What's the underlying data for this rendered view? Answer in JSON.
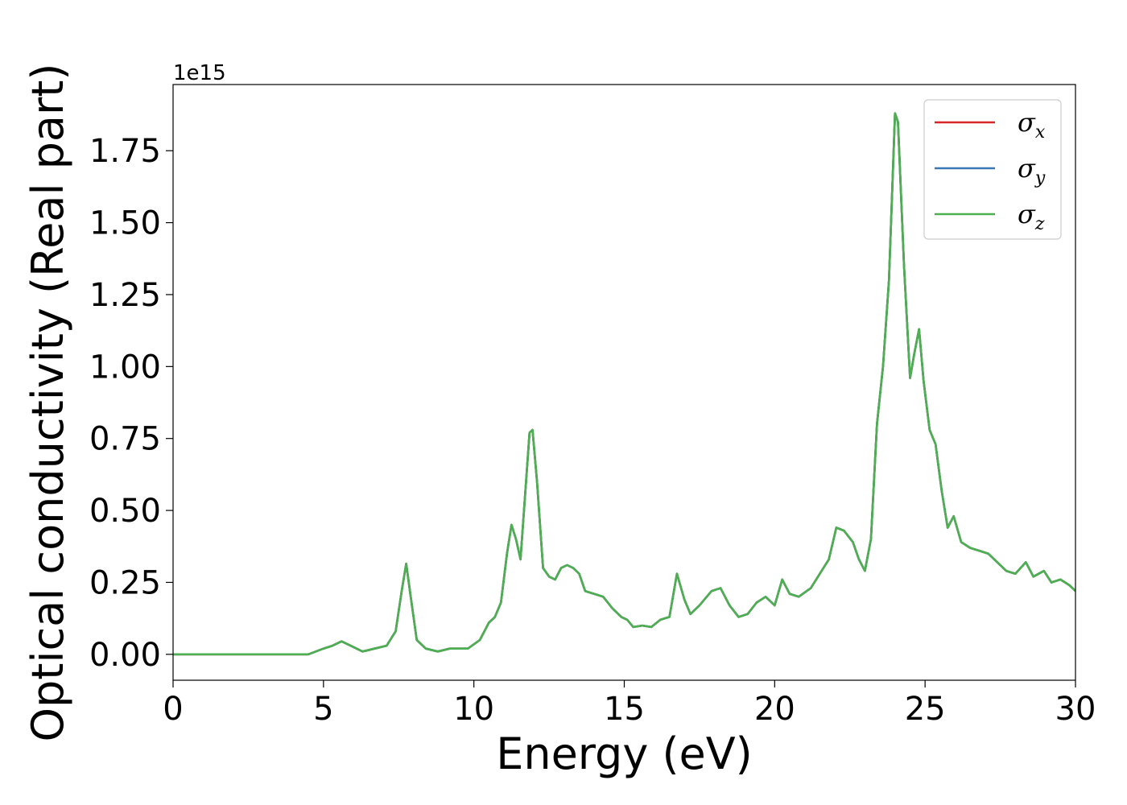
{
  "chart_data": {
    "type": "line",
    "title": "",
    "xlabel": "Energy (eV)",
    "ylabel": "Optical conductivity (Real part)",
    "offset_text": "1e15",
    "xlim": [
      0,
      30
    ],
    "ylim": [
      -0.09,
      1.98
    ],
    "xticks": [
      0,
      5,
      10,
      15,
      20,
      25,
      30
    ],
    "xtick_labels": [
      "0",
      "5",
      "10",
      "15",
      "20",
      "25",
      "30"
    ],
    "yticks": [
      0.0,
      0.25,
      0.5,
      0.75,
      1.0,
      1.25,
      1.5,
      1.75
    ],
    "ytick_labels": [
      "0.00",
      "0.25",
      "0.50",
      "0.75",
      "1.00",
      "1.25",
      "1.50",
      "1.75"
    ],
    "grid": false,
    "legend_position": "top-right",
    "series_style": [
      {
        "symbol": "σ",
        "subscript": "x",
        "color": "#d62728"
      },
      {
        "symbol": "σ",
        "subscript": "y",
        "color": "#3a77b5"
      },
      {
        "symbol": "σ",
        "subscript": "z",
        "color": "#4caf50"
      }
    ],
    "x": [
      0,
      1,
      2,
      3,
      4,
      4.5,
      5,
      5.3,
      5.6,
      5.9,
      6.3,
      6.7,
      7.1,
      7.4,
      7.6,
      7.75,
      7.9,
      8.1,
      8.4,
      8.8,
      9.2,
      9.5,
      9.8,
      10.2,
      10.5,
      10.7,
      10.9,
      11.1,
      11.25,
      11.4,
      11.55,
      11.7,
      11.85,
      11.95,
      12.1,
      12.3,
      12.5,
      12.7,
      12.9,
      13.1,
      13.3,
      13.5,
      13.7,
      14.0,
      14.3,
      14.6,
      14.9,
      15.1,
      15.3,
      15.6,
      15.9,
      16.2,
      16.5,
      16.75,
      17.0,
      17.2,
      17.5,
      17.9,
      18.2,
      18.5,
      18.8,
      19.1,
      19.4,
      19.7,
      20.0,
      20.25,
      20.5,
      20.8,
      21.2,
      21.5,
      21.8,
      22.05,
      22.3,
      22.6,
      22.8,
      23.0,
      23.2,
      23.4,
      23.6,
      23.8,
      24.0,
      24.1,
      24.3,
      24.5,
      24.65,
      24.8,
      24.95,
      25.15,
      25.35,
      25.55,
      25.75,
      25.95,
      26.2,
      26.5,
      26.8,
      27.1,
      27.4,
      27.7,
      28.0,
      28.35,
      28.6,
      28.95,
      29.2,
      29.5,
      29.8,
      30.0
    ],
    "series": [
      {
        "values": [
          0.0,
          0.0,
          0.0,
          0.0,
          0.0,
          0.0,
          0.02,
          0.03,
          0.045,
          0.03,
          0.01,
          0.02,
          0.03,
          0.08,
          0.22,
          0.315,
          0.2,
          0.05,
          0.02,
          0.01,
          0.02,
          0.02,
          0.02,
          0.05,
          0.11,
          0.13,
          0.18,
          0.35,
          0.45,
          0.4,
          0.33,
          0.55,
          0.77,
          0.78,
          0.6,
          0.3,
          0.27,
          0.26,
          0.3,
          0.31,
          0.3,
          0.28,
          0.22,
          0.21,
          0.2,
          0.16,
          0.13,
          0.12,
          0.095,
          0.1,
          0.095,
          0.12,
          0.13,
          0.28,
          0.19,
          0.14,
          0.17,
          0.22,
          0.23,
          0.17,
          0.13,
          0.14,
          0.18,
          0.2,
          0.17,
          0.26,
          0.21,
          0.2,
          0.23,
          0.28,
          0.33,
          0.44,
          0.43,
          0.39,
          0.33,
          0.29,
          0.4,
          0.8,
          1.0,
          1.3,
          1.88,
          1.85,
          1.35,
          0.96,
          1.05,
          1.13,
          0.95,
          0.78,
          0.73,
          0.57,
          0.44,
          0.48,
          0.39,
          0.37,
          0.36,
          0.35,
          0.32,
          0.29,
          0.28,
          0.32,
          0.27,
          0.29,
          0.25,
          0.26,
          0.24,
          0.22
        ]
      },
      {
        "values": [
          0.0,
          0.0,
          0.0,
          0.0,
          0.0,
          0.0,
          0.02,
          0.03,
          0.045,
          0.03,
          0.01,
          0.02,
          0.03,
          0.08,
          0.22,
          0.315,
          0.2,
          0.05,
          0.02,
          0.01,
          0.02,
          0.02,
          0.02,
          0.05,
          0.11,
          0.13,
          0.18,
          0.35,
          0.45,
          0.4,
          0.33,
          0.55,
          0.77,
          0.78,
          0.6,
          0.3,
          0.27,
          0.26,
          0.3,
          0.31,
          0.3,
          0.28,
          0.22,
          0.21,
          0.2,
          0.16,
          0.13,
          0.12,
          0.095,
          0.1,
          0.095,
          0.12,
          0.13,
          0.28,
          0.19,
          0.14,
          0.17,
          0.22,
          0.23,
          0.17,
          0.13,
          0.14,
          0.18,
          0.2,
          0.17,
          0.26,
          0.21,
          0.2,
          0.23,
          0.28,
          0.33,
          0.44,
          0.43,
          0.39,
          0.33,
          0.29,
          0.4,
          0.8,
          1.0,
          1.3,
          1.88,
          1.85,
          1.35,
          0.96,
          1.05,
          1.13,
          0.95,
          0.78,
          0.73,
          0.57,
          0.44,
          0.48,
          0.39,
          0.37,
          0.36,
          0.35,
          0.32,
          0.29,
          0.28,
          0.32,
          0.27,
          0.29,
          0.25,
          0.26,
          0.24,
          0.22
        ]
      },
      {
        "values": [
          0.0,
          0.0,
          0.0,
          0.0,
          0.0,
          0.0,
          0.02,
          0.03,
          0.045,
          0.03,
          0.01,
          0.02,
          0.03,
          0.08,
          0.22,
          0.315,
          0.2,
          0.05,
          0.02,
          0.01,
          0.02,
          0.02,
          0.02,
          0.05,
          0.11,
          0.13,
          0.18,
          0.35,
          0.45,
          0.4,
          0.33,
          0.55,
          0.77,
          0.78,
          0.6,
          0.3,
          0.27,
          0.26,
          0.3,
          0.31,
          0.3,
          0.28,
          0.22,
          0.21,
          0.2,
          0.16,
          0.13,
          0.12,
          0.095,
          0.1,
          0.095,
          0.12,
          0.13,
          0.28,
          0.19,
          0.14,
          0.17,
          0.22,
          0.23,
          0.17,
          0.13,
          0.14,
          0.18,
          0.2,
          0.17,
          0.26,
          0.21,
          0.2,
          0.23,
          0.28,
          0.33,
          0.44,
          0.43,
          0.39,
          0.33,
          0.29,
          0.4,
          0.8,
          1.0,
          1.3,
          1.88,
          1.85,
          1.35,
          0.96,
          1.05,
          1.13,
          0.95,
          0.78,
          0.73,
          0.57,
          0.44,
          0.48,
          0.39,
          0.37,
          0.36,
          0.35,
          0.32,
          0.29,
          0.28,
          0.32,
          0.27,
          0.29,
          0.25,
          0.26,
          0.24,
          0.22
        ]
      }
    ]
  }
}
